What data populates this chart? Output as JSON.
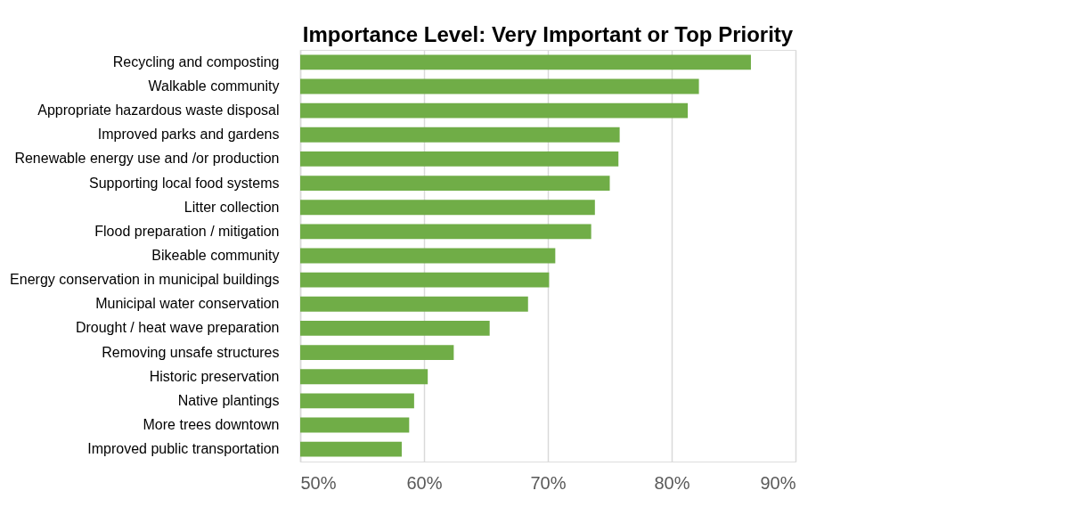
{
  "chart_data": {
    "type": "bar",
    "orientation": "horizontal",
    "title": "Importance Level: Very Important or Top Priority",
    "categories": [
      "Recycling and composting",
      "Walkable community",
      "Appropriate hazardous waste disposal",
      "Improved parks and gardens",
      "Renewable energy use and /or production",
      "Supporting local food systems",
      "Litter collection",
      "Flood preparation / mitigation",
      "Bikeable community",
      "Energy conservation in municipal buildings",
      "Municipal water conservation",
      "Drought / heat wave preparation",
      "Removing unsafe structures",
      "Historic preservation",
      "Native plantings",
      "More trees downtown",
      "Improved public transportation"
    ],
    "values": [
      86.4,
      82.2,
      81.3,
      75.8,
      75.7,
      75.0,
      73.8,
      73.5,
      70.6,
      70.1,
      68.4,
      65.3,
      62.4,
      60.3,
      59.2,
      58.8,
      58.2
    ],
    "color": "#70ad47",
    "xlim": [
      50,
      90
    ],
    "xticks": [
      {
        "value": 50,
        "label": "50%"
      },
      {
        "value": 60,
        "label": "60%"
      },
      {
        "value": 70,
        "label": "70%"
      },
      {
        "value": 80,
        "label": "80%"
      },
      {
        "value": 90,
        "label": "90%"
      }
    ],
    "grid": "x"
  }
}
